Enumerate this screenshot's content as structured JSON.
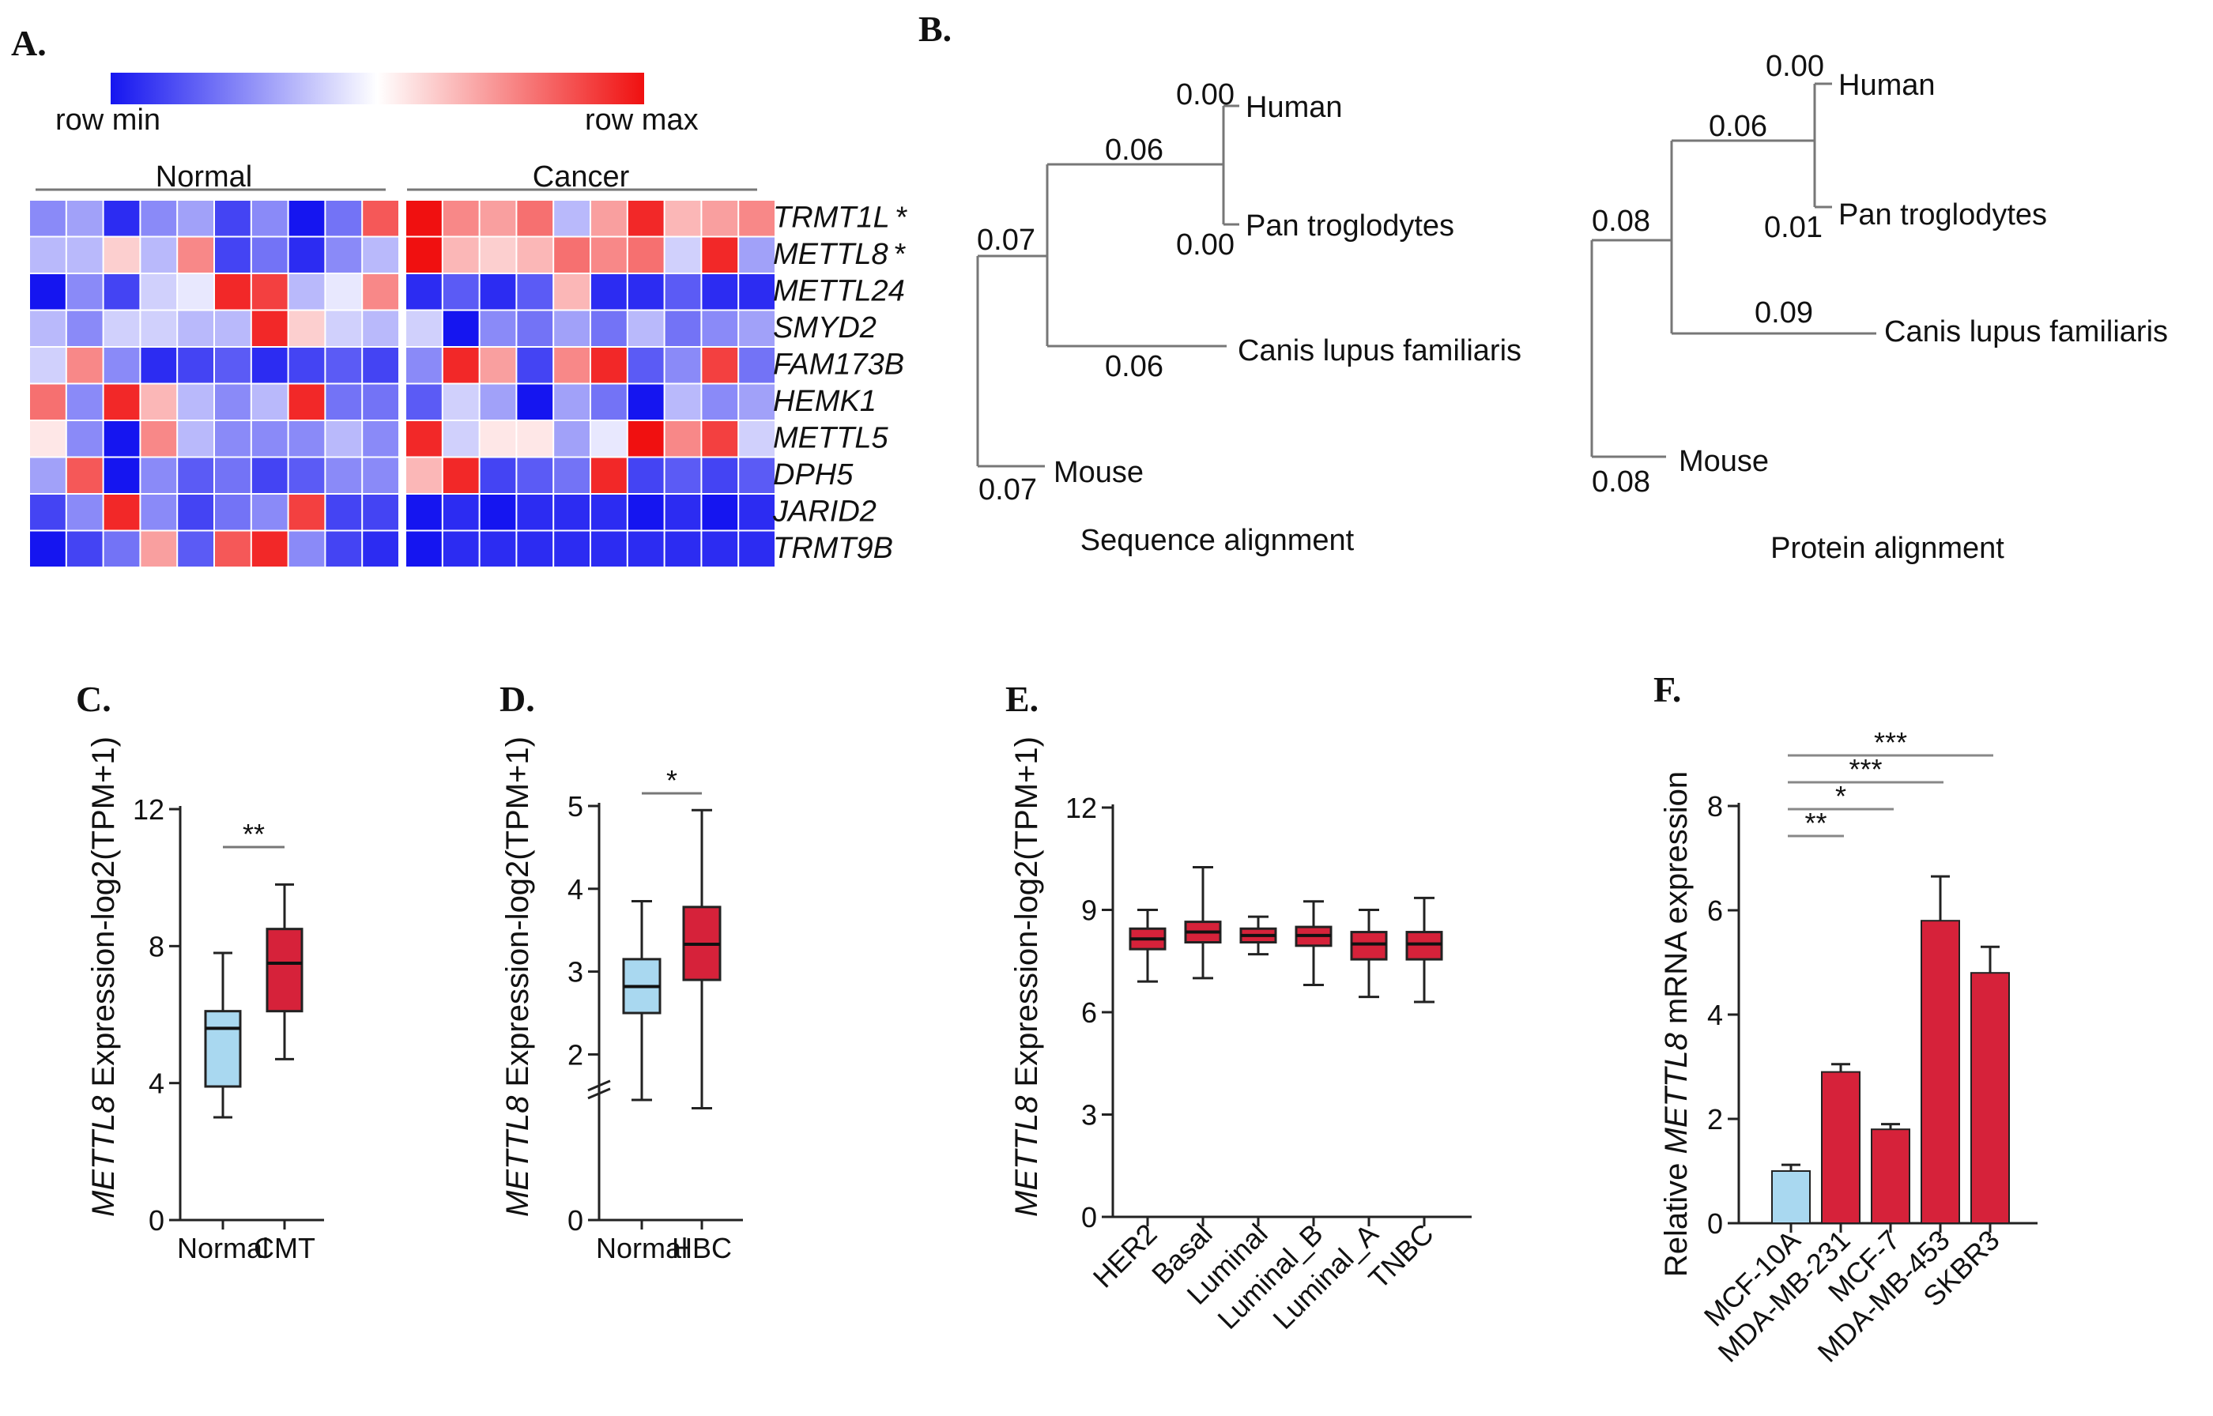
{
  "panels": {
    "A": {
      "label": "A.",
      "legend_min": "row min",
      "legend_max": "row max",
      "group_normal": "Normal",
      "group_cancer": "Cancer",
      "colors": {
        "low": "#1515f0",
        "mid": "#ffffff",
        "high": "#f01010"
      },
      "chart_data": {
        "type": "heatmap",
        "genes": [
          "TRMT1L",
          "METTL8",
          "METTL24",
          "SMYD2",
          "FAM173B",
          "HEMK1",
          "METTL5",
          "DPH5",
          "JARID2",
          "TRMT9B"
        ],
        "gene_marks": [
          "*",
          "*",
          "",
          "",
          "",
          "",
          "",
          "",
          "",
          ""
        ],
        "columns": 20,
        "normal_columns": 10,
        "cancer_columns": 10,
        "values": [
          [
            -0.5,
            -0.4,
            -0.9,
            -0.5,
            -0.4,
            -0.8,
            -0.5,
            -1.0,
            -0.6,
            0.7,
            1.0,
            0.5,
            0.4,
            0.6,
            -0.3,
            0.4,
            0.9,
            0.3,
            0.4,
            0.5
          ],
          [
            -0.3,
            -0.3,
            0.2,
            -0.3,
            0.5,
            -0.8,
            -0.6,
            -0.9,
            -0.5,
            -0.3,
            1.0,
            0.3,
            0.2,
            0.3,
            0.6,
            0.5,
            0.6,
            -0.2,
            0.9,
            -0.4
          ],
          [
            -1.0,
            -0.5,
            -0.8,
            -0.2,
            -0.1,
            0.9,
            0.8,
            -0.3,
            -0.1,
            0.5,
            -0.9,
            -0.7,
            -0.9,
            -0.7,
            0.3,
            -0.9,
            -0.9,
            -0.7,
            -0.9,
            -0.9
          ],
          [
            -0.3,
            -0.5,
            -0.2,
            -0.2,
            -0.3,
            -0.3,
            0.9,
            0.2,
            -0.2,
            -0.3,
            -0.2,
            -1.0,
            -0.5,
            -0.6,
            -0.4,
            -0.6,
            -0.3,
            -0.6,
            -0.5,
            -0.4
          ],
          [
            -0.2,
            0.5,
            -0.5,
            -0.9,
            -0.8,
            -0.7,
            -0.9,
            -0.8,
            -0.7,
            -0.8,
            -0.5,
            0.9,
            0.4,
            -0.8,
            0.5,
            0.9,
            -0.7,
            -0.5,
            0.8,
            -0.6
          ],
          [
            0.6,
            -0.5,
            0.9,
            0.3,
            -0.3,
            -0.5,
            -0.3,
            0.9,
            -0.6,
            -0.6,
            -0.7,
            -0.2,
            -0.4,
            -1.0,
            -0.4,
            -0.6,
            -1.0,
            -0.3,
            -0.5,
            -0.4
          ],
          [
            0.1,
            -0.5,
            -1.0,
            0.5,
            -0.3,
            -0.5,
            -0.5,
            -0.5,
            -0.3,
            -0.5,
            0.9,
            -0.2,
            0.1,
            0.1,
            -0.4,
            -0.1,
            1.0,
            0.5,
            0.8,
            -0.2
          ],
          [
            -0.4,
            0.7,
            -1.0,
            -0.5,
            -0.7,
            -0.6,
            -0.8,
            -0.7,
            -0.5,
            -0.5,
            0.3,
            0.9,
            -0.8,
            -0.7,
            -0.6,
            0.9,
            -0.8,
            -0.7,
            -0.8,
            -0.7
          ],
          [
            -0.8,
            -0.5,
            0.9,
            -0.5,
            -0.8,
            -0.6,
            -0.5,
            0.8,
            -0.8,
            -0.8,
            -1.0,
            -0.9,
            -1.0,
            -0.9,
            -0.9,
            -0.9,
            -1.0,
            -0.9,
            -1.0,
            -0.9
          ],
          [
            -1.0,
            -0.8,
            -0.6,
            0.4,
            -0.7,
            0.7,
            0.9,
            -0.5,
            -0.8,
            -0.9,
            -1.0,
            -0.9,
            -0.9,
            -0.9,
            -0.9,
            -0.9,
            -0.9,
            -0.9,
            -0.9,
            -0.9
          ]
        ]
      }
    },
    "B": {
      "label": "B.",
      "trees": [
        {
          "title": "Sequence alignment",
          "chart_data": {
            "type": "tree",
            "leaves": [
              {
                "name": "Human",
                "branch": "0.00"
              },
              {
                "name": "Pan troglodytes",
                "branch": "0.00"
              },
              {
                "name": "Canis lupus familiaris",
                "branch": "0.06"
              },
              {
                "name": "Mouse",
                "branch": "0.07"
              }
            ],
            "internal": [
              {
                "clade": "Human + Pan troglodytes",
                "branch": "0.06"
              },
              {
                "clade": "Human + Pan troglodytes + Canis lupus familiaris",
                "branch": "0.07"
              }
            ]
          }
        },
        {
          "title": "Protein alignment",
          "chart_data": {
            "type": "tree",
            "leaves": [
              {
                "name": "Human",
                "branch": "0.00"
              },
              {
                "name": "Pan troglodytes",
                "branch": "0.01"
              },
              {
                "name": "Canis lupus familiaris",
                "branch": "0.09"
              },
              {
                "name": "Mouse",
                "branch": "0.08"
              }
            ],
            "internal": [
              {
                "clade": "Human + Pan troglodytes",
                "branch": "0.06"
              },
              {
                "clade": "Human + Pan troglodytes + Canis lupus familiaris",
                "branch": "0.08"
              }
            ]
          }
        }
      ]
    },
    "C": {
      "label": "C.",
      "ylabel_gene": "METTL8",
      "ylabel_rest": " Expression-log2(TPM+1)",
      "chart_data": {
        "type": "box",
        "categories": [
          "Normal",
          "CMT"
        ],
        "colors": [
          "#a9d8f0",
          "#d6223a"
        ],
        "boxes": [
          {
            "min": 3.0,
            "q1": 3.9,
            "median": 5.6,
            "q3": 6.1,
            "max": 7.8
          },
          {
            "min": 4.7,
            "q1": 6.1,
            "median": 7.5,
            "q3": 8.5,
            "max": 9.8
          }
        ],
        "yticks": [
          "0",
          "4",
          "8",
          "12"
        ],
        "ylim": [
          0,
          12
        ],
        "significance": [
          {
            "from": 0,
            "to": 1,
            "label": "**"
          }
        ]
      }
    },
    "D": {
      "label": "D.",
      "ylabel_gene": "METTL8",
      "ylabel_rest": " Expression-log2(TPM+1)",
      "chart_data": {
        "type": "box",
        "categories": [
          "Normal",
          "HBC"
        ],
        "colors": [
          "#a9d8f0",
          "#d6223a"
        ],
        "boxes": [
          {
            "min": 1.45,
            "q1": 2.5,
            "median": 2.82,
            "q3": 3.15,
            "max": 3.85
          },
          {
            "min": 1.35,
            "q1": 2.9,
            "median": 3.33,
            "q3": 3.78,
            "max": 4.95
          }
        ],
        "yticks": [
          "0",
          "2",
          "3",
          "4",
          "5"
        ],
        "ylim": [
          0,
          5
        ],
        "axis_break": true,
        "significance": [
          {
            "from": 0,
            "to": 1,
            "label": "*"
          }
        ]
      }
    },
    "E": {
      "label": "E.",
      "ylabel_gene": "METTL8",
      "ylabel_rest": " Expression-log2(TPM+1)",
      "chart_data": {
        "type": "box",
        "categories": [
          "HER2",
          "Basal",
          "Luminal",
          "Luminal_B",
          "Luminal_A",
          "TNBC"
        ],
        "colors": [
          "#d6223a",
          "#d6223a",
          "#d6223a",
          "#d6223a",
          "#d6223a",
          "#d6223a"
        ],
        "boxes": [
          {
            "min": 6.9,
            "q1": 7.85,
            "median": 8.15,
            "q3": 8.45,
            "max": 9.0
          },
          {
            "min": 7.0,
            "q1": 8.05,
            "median": 8.35,
            "q3": 8.65,
            "max": 10.25
          },
          {
            "min": 7.7,
            "q1": 8.05,
            "median": 8.25,
            "q3": 8.45,
            "max": 8.8
          },
          {
            "min": 6.8,
            "q1": 7.95,
            "median": 8.25,
            "q3": 8.5,
            "max": 9.25
          },
          {
            "min": 6.45,
            "q1": 7.55,
            "median": 8.0,
            "q3": 8.35,
            "max": 9.0
          },
          {
            "min": 6.3,
            "q1": 7.55,
            "median": 8.0,
            "q3": 8.35,
            "max": 9.35
          }
        ],
        "yticks": [
          "0",
          "3",
          "6",
          "9",
          "12"
        ],
        "ylim": [
          0,
          12
        ]
      }
    },
    "F": {
      "label": "F.",
      "ylabel_pre": "Relative ",
      "ylabel_gene": "METTL8",
      "ylabel_post": " mRNA expression",
      "chart_data": {
        "type": "bar",
        "categories": [
          "MCF-10A",
          "MDA-MB-231",
          "MCF-7",
          "MDA-MB-453",
          "SKBR3"
        ],
        "values": [
          1.0,
          2.9,
          1.8,
          5.8,
          4.8
        ],
        "errors": [
          0.12,
          0.15,
          0.1,
          0.85,
          0.5
        ],
        "colors": [
          "#a9d8f0",
          "#d6223a",
          "#d6223a",
          "#d6223a",
          "#d6223a"
        ],
        "yticks": [
          "0",
          "2",
          "4",
          "6",
          "8"
        ],
        "ylim": [
          0,
          8
        ],
        "significance": [
          {
            "from": 0,
            "to": 1,
            "label": "**"
          },
          {
            "from": 0,
            "to": 2,
            "label": "*"
          },
          {
            "from": 0,
            "to": 3,
            "label": "***"
          },
          {
            "from": 0,
            "to": 4,
            "label": "***"
          }
        ]
      }
    }
  }
}
